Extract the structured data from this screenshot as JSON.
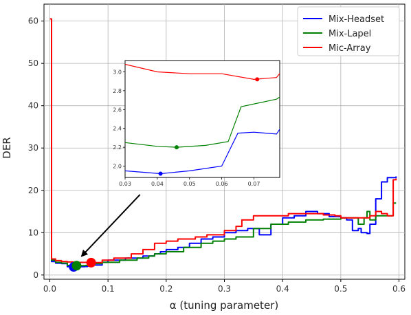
{
  "chart_data": {
    "type": "line",
    "xlabel": "α (tuning parameter)",
    "ylabel": "DER",
    "xlim": [
      -0.01,
      0.61
    ],
    "ylim": [
      -1,
      64
    ],
    "xticks": [
      0.0,
      0.1,
      0.2,
      0.3,
      0.4,
      0.5,
      0.6
    ],
    "xtick_labels": [
      "0.0",
      "0.1",
      "0.2",
      "0.3",
      "0.4",
      "0.5",
      "0.6"
    ],
    "yticks": [
      0,
      10,
      20,
      30,
      40,
      50,
      60
    ],
    "ytick_labels": [
      "0",
      "10",
      "20",
      "30",
      "40",
      "50",
      "60"
    ],
    "grid": true,
    "legend_position": "top-right",
    "series": [
      {
        "name": "Mix-Headset",
        "color": "#0000ff",
        "x": [
          0.0,
          0.003,
          0.01,
          0.02,
          0.03,
          0.041,
          0.05,
          0.06,
          0.065,
          0.07,
          0.077,
          0.09,
          0.1,
          0.13,
          0.16,
          0.18,
          0.19,
          0.2,
          0.22,
          0.24,
          0.26,
          0.28,
          0.3,
          0.32,
          0.34,
          0.36,
          0.38,
          0.4,
          0.42,
          0.44,
          0.46,
          0.48,
          0.5,
          0.51,
          0.52,
          0.53,
          0.535,
          0.545,
          0.55,
          0.56,
          0.57,
          0.58,
          0.595
        ],
        "y": [
          60.5,
          3.2,
          2.8,
          2.7,
          1.95,
          1.92,
          1.95,
          2.0,
          2.35,
          2.36,
          2.34,
          3.0,
          3.5,
          4.0,
          4.5,
          5.0,
          5.5,
          6.0,
          6.5,
          7.5,
          8.5,
          9.0,
          10.0,
          10.5,
          11.0,
          9.5,
          12.0,
          13.5,
          14.0,
          15.0,
          14.5,
          13.8,
          13.5,
          13.0,
          10.5,
          11.0,
          10.0,
          9.8,
          12.0,
          18.0,
          22.0,
          23.0,
          23.3
        ]
      },
      {
        "name": "Mix-Lapel",
        "color": "#008000",
        "x": [
          0.0,
          0.003,
          0.01,
          0.02,
          0.03,
          0.04,
          0.046,
          0.055,
          0.062,
          0.066,
          0.077,
          0.09,
          0.12,
          0.15,
          0.17,
          0.18,
          0.2,
          0.23,
          0.26,
          0.28,
          0.3,
          0.32,
          0.35,
          0.38,
          0.41,
          0.44,
          0.47,
          0.5,
          0.52,
          0.53,
          0.54,
          0.545,
          0.55,
          0.56,
          0.58,
          0.59,
          0.595
        ],
        "y": [
          60.5,
          3.5,
          3.0,
          2.8,
          2.25,
          2.21,
          2.2,
          2.22,
          2.26,
          2.63,
          2.71,
          3.0,
          3.5,
          4.0,
          4.5,
          5.0,
          5.5,
          6.5,
          7.5,
          8.0,
          8.5,
          9.0,
          11.0,
          12.0,
          12.5,
          13.0,
          13.2,
          13.5,
          13.5,
          12.0,
          13.5,
          15.0,
          13.0,
          14.0,
          14.0,
          17.0,
          17.0
        ]
      },
      {
        "name": "Mic-Array",
        "color": "#ff0000",
        "x": [
          0.0,
          0.003,
          0.01,
          0.02,
          0.03,
          0.04,
          0.05,
          0.06,
          0.07,
          0.077,
          0.09,
          0.11,
          0.14,
          0.16,
          0.18,
          0.2,
          0.22,
          0.25,
          0.27,
          0.3,
          0.32,
          0.33,
          0.35,
          0.38,
          0.41,
          0.44,
          0.47,
          0.49,
          0.5,
          0.52,
          0.54,
          0.55,
          0.56,
          0.57,
          0.58,
          0.59,
          0.595
        ],
        "y": [
          60.5,
          3.8,
          3.4,
          3.2,
          3.08,
          3.0,
          2.98,
          2.98,
          2.92,
          2.94,
          3.5,
          4.0,
          5.0,
          6.0,
          7.5,
          8.0,
          8.5,
          9.0,
          9.5,
          10.5,
          11.5,
          13.0,
          14.0,
          14.0,
          14.5,
          14.5,
          14.2,
          14.0,
          13.5,
          13.5,
          13.5,
          14.0,
          15.0,
          14.5,
          14.0,
          22.5,
          22.8
        ]
      }
    ],
    "highlight_points": [
      {
        "series": "Mix-Headset",
        "x": 0.041,
        "y": 1.92
      },
      {
        "series": "Mix-Lapel",
        "x": 0.046,
        "y": 2.2
      },
      {
        "series": "Mic-Array",
        "x": 0.071,
        "y": 2.92
      }
    ],
    "inset": {
      "xlim": [
        0.03,
        0.078
      ],
      "ylim": [
        1.88,
        3.12
      ],
      "xticks": [
        0.03,
        0.04,
        0.05,
        0.06,
        0.07
      ],
      "xtick_labels": [
        "0.03",
        "0.04",
        "0.05",
        "0.06",
        "0.07"
      ],
      "yticks": [
        2.0,
        2.2,
        2.4,
        2.6,
        2.8,
        3.0
      ],
      "ytick_labels": [
        "2.0",
        "2.2",
        "2.4",
        "2.6",
        "2.8",
        "3.0"
      ]
    },
    "annotation_arrow": {
      "from": [
        0.155,
        19.0
      ],
      "to": [
        0.055,
        4.5
      ]
    }
  }
}
